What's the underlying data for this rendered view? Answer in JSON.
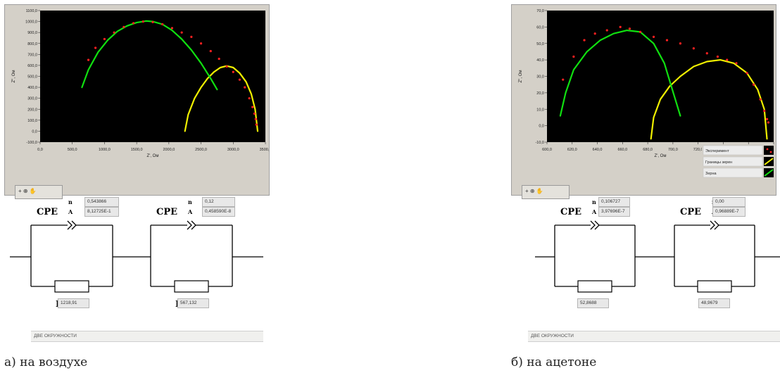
{
  "panel_a": {
    "caption": "а) на воздухе",
    "tool_label": "+ ⊕ ✋",
    "circuit": {
      "cpe1_label": "CPE",
      "cpe1_n_symbol": "n",
      "cpe1_a_symbol": "A",
      "cpe1_n_value": "0,543866",
      "cpe1_a_value": "8,12725E-1",
      "cpe2_label": "CPE",
      "cpe2_n_symbol": "n",
      "cpe2_a_symbol": "A",
      "cpe2_n_value": "0,12",
      "cpe2_a_value": "0,458590E-8",
      "r1_label": "R",
      "r1_value": "1218,91",
      "r2_label": "R",
      "r2_value": "567,132"
    },
    "status_text": "ДВЕ ОКРУЖНОСТИ"
  },
  "panel_b": {
    "caption": "б) на ацетоне",
    "tool_label": "+ ⊕ ✋",
    "legend": [
      "Эксперимент",
      "Границы зерен",
      "Зерна"
    ],
    "circuit": {
      "cpe1_label": "CPE",
      "cpe1_n_symbol": "n",
      "cpe1_a_symbol": "A",
      "cpe1_n_value": "0,106727",
      "cpe1_a_value": "3,97696E-7",
      "cpe2_label": "CPE",
      "cpe2_n_symbol": "n",
      "cpe2_a_symbol": "A",
      "cpe2_n_value": "0,00",
      "cpe2_a_value": "0,96889E-7",
      "r1_label": "R",
      "r1_value": "52,8688",
      "r2_label": "R",
      "r2_value": "48,9679"
    },
    "status_text": "ДВЕ ОКРУЖНОСТИ"
  },
  "colors": {
    "experiment": "#ff2020",
    "grain_boundaries": "#f0f000",
    "grains": "#10e010",
    "plot_bg": "#000000",
    "frame": "#d4d0c8"
  },
  "chart_data": [
    {
      "type": "scatter",
      "title": "",
      "xlabel": "Z', Ом",
      "ylabel": "Z'', Ом",
      "xlim": [
        0,
        3500
      ],
      "ylim": [
        -100,
        1100
      ],
      "x_ticks": [
        "0,0",
        "500,0",
        "1000,0",
        "1500,0",
        "2000,0",
        "2500,0",
        "3000,0",
        "3500,0"
      ],
      "y_ticks": [
        "-100,0",
        "0,0",
        "100,0",
        "200,0",
        "300,0",
        "400,0",
        "500,0",
        "600,0",
        "700,0",
        "800,0",
        "900,0",
        "1000,0",
        "1100,0"
      ],
      "series": [
        {
          "x": [
            750,
            860,
            1000,
            1150,
            1300,
            1450,
            1600,
            1750,
            1900,
            2050,
            2200,
            2350,
            2500,
            2650,
            2780,
            2900,
            3000,
            3100,
            3180,
            3250,
            3300,
            3330,
            3350,
            3360
          ],
          "y": [
            650,
            760,
            840,
            900,
            950,
            985,
            1000,
            995,
            975,
            940,
            900,
            860,
            800,
            730,
            660,
            590,
            540,
            470,
            400,
            300,
            220,
            160,
            110,
            60
          ]
        },
        {
          "x": [
            2250,
            2300,
            2400,
            2500,
            2600,
            2700,
            2800,
            2900,
            3000,
            3100,
            3200,
            3280,
            3340,
            3380
          ],
          "y": [
            0,
            150,
            300,
            400,
            480,
            540,
            580,
            595,
            580,
            530,
            450,
            340,
            200,
            0
          ]
        },
        {
          "x": [
            650,
            750,
            900,
            1050,
            1200,
            1350,
            1500,
            1650,
            1750,
            1900,
            2050,
            2200,
            2350,
            2500,
            2650,
            2750
          ],
          "y": [
            400,
            560,
            720,
            830,
            910,
            960,
            990,
            1005,
            1000,
            975,
            920,
            840,
            740,
            620,
            480,
            380
          ]
        }
      ]
    },
    {
      "type": "scatter",
      "title": "",
      "xlabel": "Z', Ом",
      "ylabel": "Z'', Ом",
      "xlim": [
        600,
        770
      ],
      "ylim": [
        -10,
        70
      ],
      "x_ticks": [
        "600,0",
        "620,0",
        "640,0",
        "660,0",
        "680,0",
        "700,0",
        "720,0",
        "740,0",
        "760,0",
        "780,0"
      ],
      "y_ticks": [
        "-10,0",
        "0,0",
        "10,0",
        "20,0",
        "30,0",
        "40,0",
        "50,0",
        "60,0",
        "70,0"
      ],
      "legend": [
        "Эксперимент",
        "Границы зерен",
        "Зерна"
      ],
      "series": [
        {
          "name": "Эксперимент",
          "x": [
            612,
            620,
            628,
            636,
            645,
            655,
            662,
            670,
            680,
            690,
            700,
            710,
            720,
            728,
            735,
            742,
            750,
            755,
            760,
            763,
            765,
            766
          ],
          "y": [
            28,
            42,
            52,
            56,
            58,
            60,
            59,
            57,
            54,
            52,
            50,
            47,
            44,
            42,
            40,
            38,
            32,
            25,
            16,
            9,
            4,
            2
          ]
        },
        {
          "name": "Границы зерен",
          "x": [
            678,
            680,
            685,
            692,
            700,
            710,
            720,
            730,
            740,
            750,
            758,
            763,
            765
          ],
          "y": [
            -8,
            5,
            16,
            24,
            30,
            36,
            39,
            40,
            38,
            32,
            22,
            10,
            -8
          ]
        },
        {
          "name": "Зерна",
          "x": [
            610,
            614,
            620,
            630,
            640,
            650,
            660,
            670,
            680,
            688,
            694,
            700
          ],
          "y": [
            6,
            20,
            34,
            45,
            52,
            56,
            58,
            57,
            50,
            38,
            22,
            6
          ]
        }
      ]
    }
  ]
}
